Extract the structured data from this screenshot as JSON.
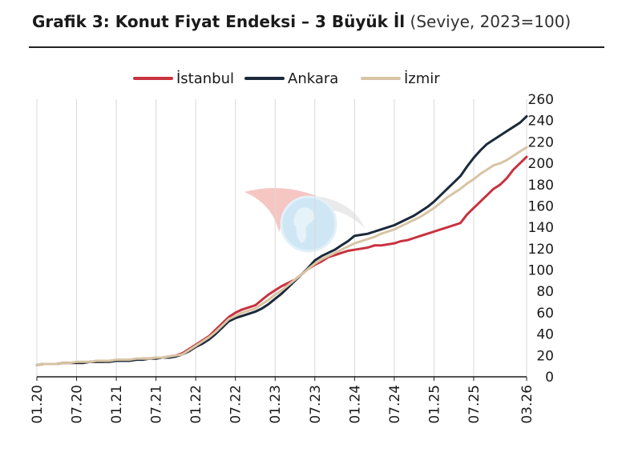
{
  "title": {
    "main": "Grafik 3: Konut Fiyat Endeksi – 3 Büyük İl",
    "sub": "(Seviye, 2023=100)"
  },
  "watermark_icon": "globe-logo-watermark",
  "colors": {
    "istanbul": "#c8323f",
    "ankara": "#1b2a3a",
    "izmir": "#d8c4a4",
    "grid": "#d8d8d8"
  },
  "chart_data": {
    "type": "line",
    "title": "Grafik 3: Konut Fiyat Endeksi – 3 Büyük İl",
    "subtitle": "(Seviye, 2023=100)",
    "xlabel": "",
    "ylabel": "",
    "ylim": [
      0,
      260
    ],
    "yticks": [
      0,
      20,
      40,
      60,
      80,
      100,
      120,
      140,
      160,
      180,
      200,
      220,
      240,
      260
    ],
    "xticks": [
      "01.20",
      "07.20",
      "01.21",
      "07.21",
      "01.22",
      "07.22",
      "01.23",
      "07.23",
      "01.24",
      "07.24",
      "01.25",
      "07.25",
      "03.26"
    ],
    "grid": "vertical",
    "legend_position": "top",
    "x": [
      "01.20",
      "02.20",
      "03.20",
      "04.20",
      "05.20",
      "06.20",
      "07.20",
      "08.20",
      "09.20",
      "10.20",
      "11.20",
      "12.20",
      "01.21",
      "02.21",
      "03.21",
      "04.21",
      "05.21",
      "06.21",
      "07.21",
      "08.21",
      "09.21",
      "10.21",
      "11.21",
      "12.21",
      "01.22",
      "02.22",
      "03.22",
      "04.22",
      "05.22",
      "06.22",
      "07.22",
      "08.22",
      "09.22",
      "10.22",
      "11.22",
      "12.22",
      "01.23",
      "02.23",
      "03.23",
      "04.23",
      "05.23",
      "06.23",
      "07.23",
      "08.23",
      "09.23",
      "10.23",
      "11.23",
      "12.23",
      "01.24",
      "02.24",
      "03.24",
      "04.24",
      "05.24",
      "06.24",
      "07.24",
      "08.24",
      "09.24",
      "10.24",
      "11.24",
      "12.24",
      "01.25",
      "02.25",
      "03.25",
      "04.25",
      "05.25",
      "06.25",
      "07.25",
      "08.25",
      "09.25",
      "10.25",
      "11.25",
      "12.25",
      "01.26",
      "02.26",
      "03.26"
    ],
    "series": [
      {
        "name": "İstanbul",
        "values": [
          11,
          12,
          12,
          12,
          13,
          13,
          13,
          13,
          14,
          14,
          14,
          15,
          15,
          15,
          16,
          16,
          17,
          17,
          18,
          18,
          19,
          20,
          22,
          26,
          30,
          34,
          38,
          44,
          50,
          56,
          60,
          63,
          65,
          67,
          72,
          77,
          81,
          85,
          88,
          91,
          96,
          101,
          105,
          108,
          112,
          114,
          116,
          118,
          119,
          120,
          121,
          123,
          123,
          124,
          125,
          127,
          128,
          130,
          132,
          134,
          136,
          138,
          140,
          142,
          144,
          152,
          158,
          164,
          170,
          176,
          180,
          186,
          194,
          200,
          206
        ]
      },
      {
        "name": "Ankara",
        "values": [
          11,
          12,
          12,
          12,
          13,
          13,
          13,
          13,
          14,
          14,
          14,
          14,
          15,
          15,
          15,
          16,
          16,
          17,
          17,
          18,
          18,
          19,
          21,
          24,
          28,
          31,
          35,
          40,
          46,
          52,
          55,
          57,
          59,
          61,
          64,
          68,
          73,
          78,
          84,
          90,
          96,
          102,
          109,
          113,
          116,
          119,
          123,
          127,
          132,
          133,
          134,
          136,
          138,
          140,
          142,
          145,
          148,
          151,
          155,
          159,
          164,
          170,
          176,
          182,
          188,
          197,
          205,
          212,
          218,
          222,
          226,
          230,
          234,
          238,
          244
        ]
      },
      {
        "name": "İzmir",
        "values": [
          11,
          12,
          12,
          12,
          13,
          13,
          14,
          14,
          14,
          15,
          15,
          15,
          16,
          16,
          16,
          17,
          17,
          17,
          18,
          18,
          19,
          20,
          21,
          25,
          29,
          33,
          37,
          42,
          48,
          54,
          57,
          60,
          62,
          64,
          68,
          72,
          77,
          81,
          86,
          91,
          96,
          101,
          106,
          110,
          113,
          116,
          119,
          122,
          125,
          127,
          129,
          131,
          134,
          136,
          138,
          141,
          144,
          147,
          150,
          154,
          158,
          163,
          168,
          172,
          176,
          181,
          185,
          190,
          194,
          198,
          200,
          203,
          207,
          211,
          215
        ]
      }
    ]
  }
}
